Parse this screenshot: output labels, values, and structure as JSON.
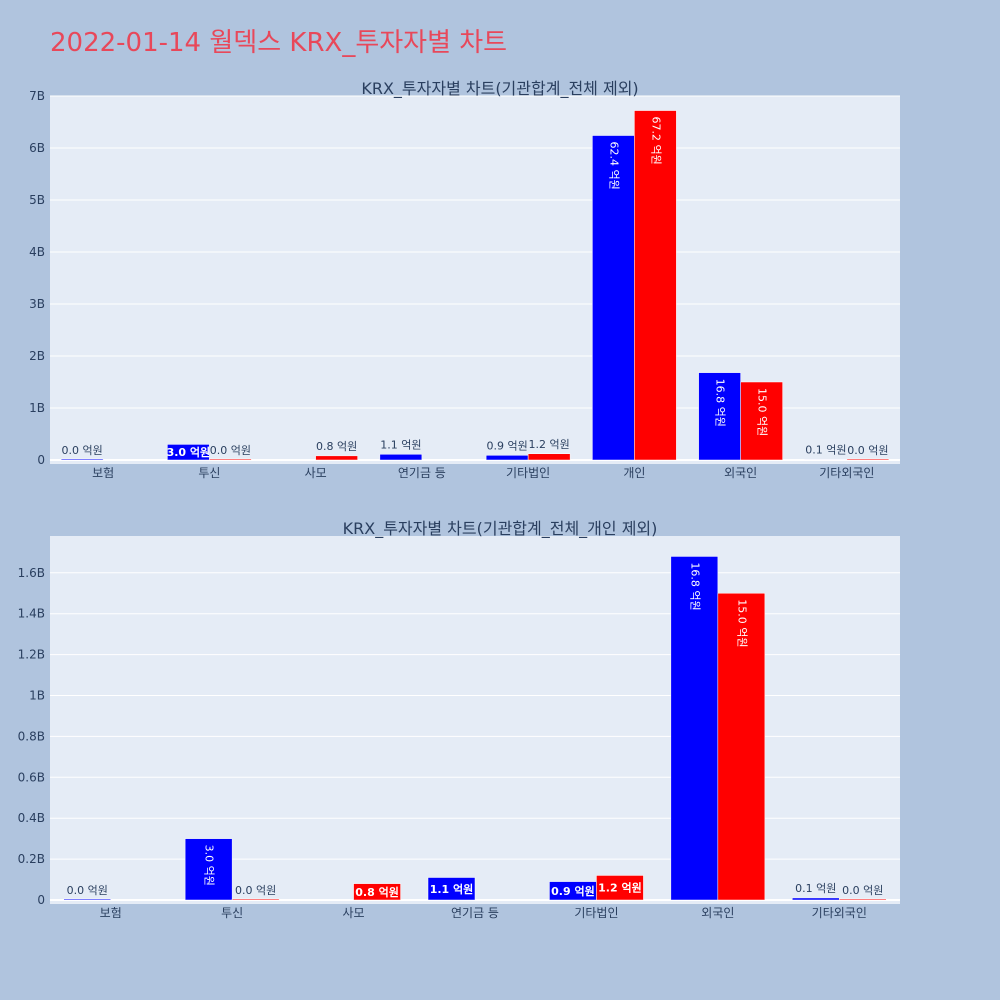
{
  "page_title": "2022-01-14 월덱스 KRX_투자자별 차트",
  "colors": {
    "background": "#b0c4de",
    "plot_bg": "#e5ecf6",
    "buy": "#0000ff",
    "sell": "#ff0000",
    "title": "#e8485a"
  },
  "chart_data": [
    {
      "type": "bar",
      "title": "KRX_투자자별 차트(기관합계_전체 제외)",
      "categories": [
        "보험",
        "투신",
        "사모",
        "연기금 등",
        "기타법인",
        "개인",
        "외국인",
        "기타외국인"
      ],
      "y_ticks": [
        "0",
        "1B",
        "2B",
        "3B",
        "4B",
        "5B",
        "6B",
        "7B"
      ],
      "ylim": [
        0,
        7000000000
      ],
      "grid": true,
      "series": [
        {
          "color": "#0000ff",
          "values": [
            0,
            300000000,
            null,
            110000000,
            90000000,
            6240000000,
            1680000000,
            10000000
          ],
          "labels": [
            "0.0 억원",
            "3.0 억원",
            "",
            "1.1 억원",
            "0.9 억원",
            "62.4 억원",
            "16.8 억원",
            "0.1 억원"
          ]
        },
        {
          "color": "#ff0000",
          "values": [
            null,
            0,
            80000000,
            null,
            120000000,
            6720000000,
            1500000000,
            0
          ],
          "labels": [
            "",
            "0.0 억원",
            "0.8 억원",
            "",
            "1.2 억원",
            "67.2 억원",
            "15.0 억원",
            "0.0 억원"
          ]
        }
      ]
    },
    {
      "type": "bar",
      "title": "KRX_투자자별 차트(기관합계_전체_개인 제외)",
      "categories": [
        "보험",
        "투신",
        "사모",
        "연기금 등",
        "기타법인",
        "외국인",
        "기타외국인"
      ],
      "y_ticks": [
        "0",
        "0.2B",
        "0.4B",
        "0.6B",
        "0.8B",
        "1B",
        "1.2B",
        "1.4B",
        "1.6B"
      ],
      "ylim": [
        0,
        1780000000
      ],
      "grid": true,
      "series": [
        {
          "color": "#0000ff",
          "values": [
            0,
            300000000,
            null,
            110000000,
            90000000,
            1680000000,
            10000000
          ],
          "labels": [
            "0.0 억원",
            "3.0 억원",
            "",
            "1.1 억원",
            "0.9 억원",
            "16.8 억원",
            "0.1 억원"
          ]
        },
        {
          "color": "#ff0000",
          "values": [
            null,
            0,
            80000000,
            null,
            120000000,
            1500000000,
            0
          ],
          "labels": [
            "",
            "0.0 억원",
            "0.8 억원",
            "",
            "1.2 억원",
            "15.0 억원",
            "0.0 억원"
          ]
        }
      ]
    }
  ]
}
